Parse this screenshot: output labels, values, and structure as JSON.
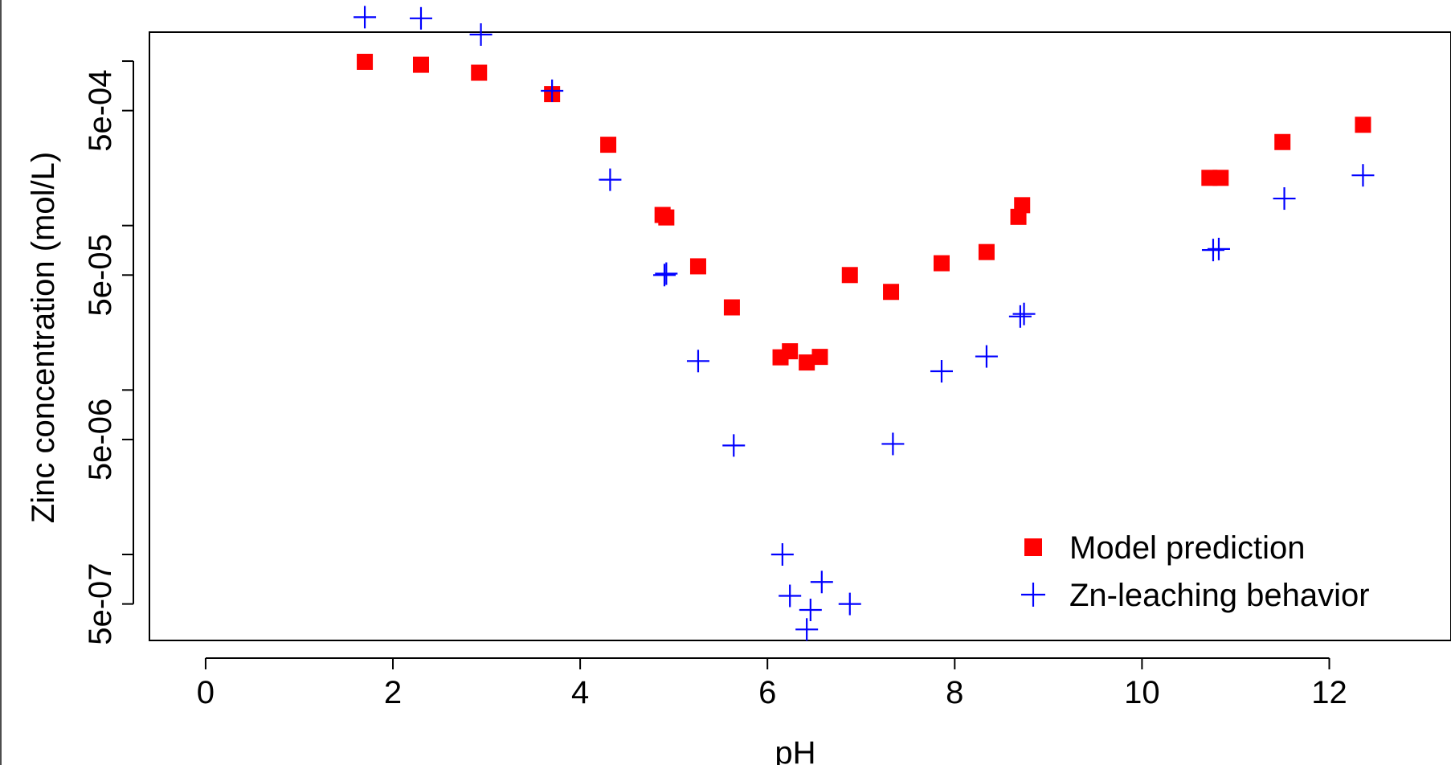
{
  "chart_data": {
    "type": "scatter",
    "title": "",
    "xlabel": "pH",
    "ylabel": "Zinc concentration (mol/L)",
    "xlim": [
      -0.6,
      13.3
    ],
    "ylim": [
      3e-07,
      0.0015
    ],
    "y_scale": "log",
    "x_ticks": [
      0,
      2,
      4,
      6,
      8,
      10,
      12
    ],
    "x_tick_labels": [
      "0",
      "2",
      "4",
      "6",
      "8",
      "10",
      "12"
    ],
    "y_ticks": [
      5e-07,
      1e-06,
      5e-06,
      1e-05,
      5e-05,
      0.0001,
      0.0005,
      0.001
    ],
    "y_tick_labels": [
      "5e-07",
      "",
      "5e-06",
      "",
      "5e-05",
      "",
      "5e-04",
      ""
    ],
    "legend": {
      "position": "bottom-right"
    },
    "series": [
      {
        "name": "Model prediction",
        "marker": "square",
        "color": "#ff0000",
        "x": [
          1.7,
          2.3,
          2.92,
          3.7,
          4.3,
          4.88,
          4.92,
          5.26,
          5.62,
          6.14,
          6.24,
          6.42,
          6.56,
          6.88,
          7.32,
          7.86,
          8.34,
          8.68,
          8.72,
          10.72,
          10.84,
          11.5,
          12.36
        ],
        "y": [
          0.00099,
          0.00095,
          0.00085,
          0.00063,
          0.00031,
          0.000116,
          0.000112,
          5.65e-05,
          3.18e-05,
          1.58e-05,
          1.72e-05,
          1.47e-05,
          1.59e-05,
          5e-05,
          3.95e-05,
          5.9e-05,
          6.9e-05,
          0.000113,
          0.000133,
          0.000195,
          0.000195,
          0.000322,
          0.00041
        ]
      },
      {
        "name": "Zn-leaching behavior",
        "marker": "plus",
        "color": "#0000ff",
        "x": [
          1.7,
          2.3,
          2.94,
          3.7,
          4.32,
          4.9,
          4.92,
          5.26,
          5.64,
          6.16,
          6.24,
          6.42,
          6.46,
          6.58,
          6.88,
          7.34,
          7.86,
          8.34,
          8.7,
          8.74,
          10.76,
          10.82,
          11.52,
          12.36
        ],
        "y": [
          0.00185,
          0.00182,
          0.00145,
          0.00066,
          0.00019,
          5e-05,
          5.1e-05,
          1.5e-05,
          4.6e-06,
          1e-06,
          5.6e-07,
          3.5e-07,
          4.6e-07,
          6.8e-07,
          5e-07,
          4.7e-06,
          1.3e-05,
          1.6e-05,
          2.8e-05,
          2.9e-05,
          7.1e-05,
          7.2e-05,
          0.000146,
          0.000202
        ]
      }
    ]
  }
}
